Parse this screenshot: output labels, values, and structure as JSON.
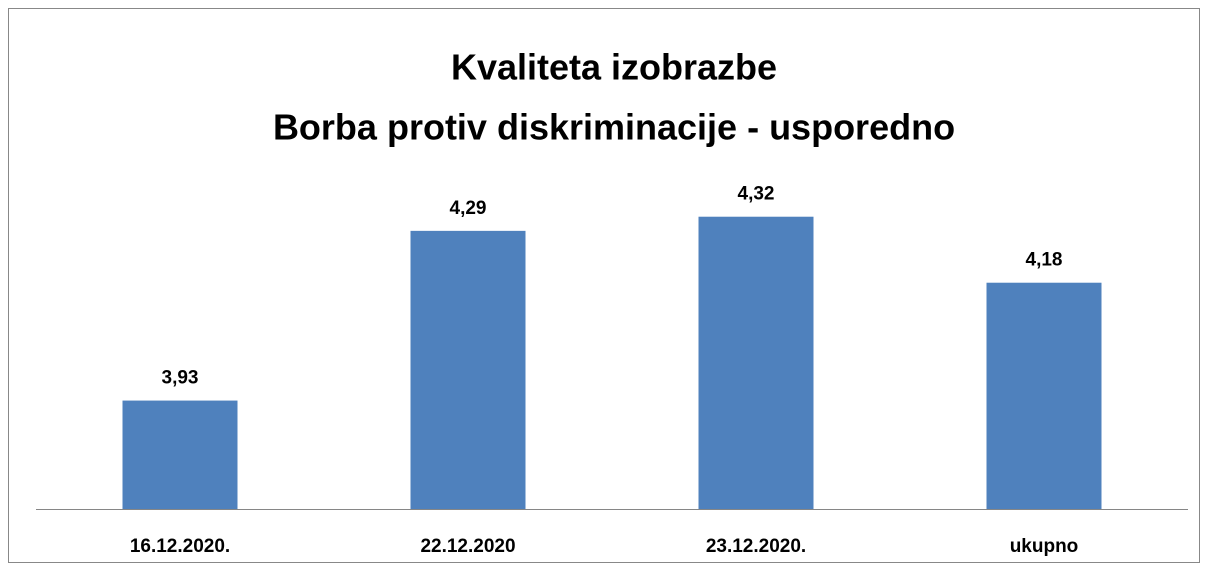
{
  "chart_data": {
    "type": "bar",
    "title": [
      "Kvaliteta izobrazbe",
      "Borba protiv diskriminacije  - usporedno"
    ],
    "categories": [
      "16.12.2020.",
      "22.12.2020",
      "23.12.2020.",
      "ukupno"
    ],
    "values": [
      3.93,
      4.29,
      4.32,
      4.18
    ],
    "value_labels": [
      "3,93",
      "4,29",
      "4,32",
      "4,18"
    ],
    "color": "#4f81bd",
    "ylim": [
      3.7,
      4.4
    ]
  }
}
